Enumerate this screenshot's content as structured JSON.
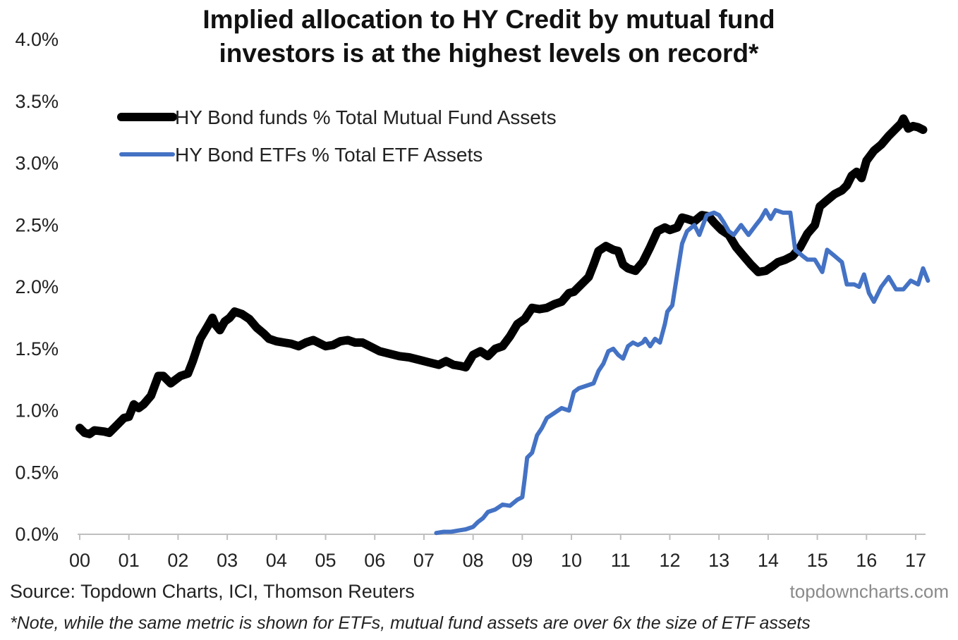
{
  "chart_data": {
    "type": "line",
    "title": [
      "Implied allocation to HY Credit by mutual fund",
      "investors is at the highest levels on record*"
    ],
    "xlabel": "",
    "ylabel": "",
    "xlim": [
      2000.0,
      2017.3
    ],
    "ylim": [
      0,
      4.0
    ],
    "grid": false,
    "legend_position": "top-left",
    "x_ticks": [
      {
        "value": 2000,
        "label": "00"
      },
      {
        "value": 2001,
        "label": "01"
      },
      {
        "value": 2002,
        "label": "02"
      },
      {
        "value": 2003,
        "label": "03"
      },
      {
        "value": 2004,
        "label": "04"
      },
      {
        "value": 2005,
        "label": "05"
      },
      {
        "value": 2006,
        "label": "06"
      },
      {
        "value": 2007,
        "label": "07"
      },
      {
        "value": 2008,
        "label": "08"
      },
      {
        "value": 2009,
        "label": "09"
      },
      {
        "value": 2010,
        "label": "10"
      },
      {
        "value": 2011,
        "label": "11"
      },
      {
        "value": 2012,
        "label": "12"
      },
      {
        "value": 2013,
        "label": "13"
      },
      {
        "value": 2014,
        "label": "14"
      },
      {
        "value": 2015,
        "label": "15"
      },
      {
        "value": 2016,
        "label": "16"
      },
      {
        "value": 2017,
        "label": "17"
      }
    ],
    "y_ticks": [
      {
        "value": 0.0,
        "label": "0.0%"
      },
      {
        "value": 0.5,
        "label": "0.5%"
      },
      {
        "value": 1.0,
        "label": "1.0%"
      },
      {
        "value": 1.5,
        "label": "1.5%"
      },
      {
        "value": 2.0,
        "label": "2.0%"
      },
      {
        "value": 2.5,
        "label": "2.5%"
      },
      {
        "value": 3.0,
        "label": "3.0%"
      },
      {
        "value": 3.5,
        "label": "3.5%"
      },
      {
        "value": 4.0,
        "label": "4.0%"
      }
    ],
    "series": [
      {
        "name": "HY Bond funds % Total Mutual Fund Assets",
        "color": "#000000",
        "x": [
          2000.0,
          2000.1,
          2000.2,
          2000.3,
          2000.5,
          2000.6,
          2000.75,
          2000.9,
          2001.0,
          2001.1,
          2001.2,
          2001.3,
          2001.45,
          2001.6,
          2001.7,
          2001.85,
          2001.95,
          2002.05,
          2002.2,
          2002.3,
          2002.45,
          2002.6,
          2002.7,
          2002.75,
          2002.85,
          2002.95,
          2003.05,
          2003.15,
          2003.3,
          2003.45,
          2003.6,
          2003.75,
          2003.85,
          2004.0,
          2004.15,
          2004.3,
          2004.45,
          2004.6,
          2004.75,
          2004.9,
          2005.0,
          2005.15,
          2005.3,
          2005.45,
          2005.6,
          2005.75,
          2005.9,
          2006.1,
          2006.3,
          2006.5,
          2006.7,
          2006.9,
          2007.1,
          2007.3,
          2007.45,
          2007.6,
          2007.75,
          2007.85,
          2008.0,
          2008.15,
          2008.3,
          2008.45,
          2008.6,
          2008.75,
          2008.9,
          2009.05,
          2009.2,
          2009.35,
          2009.5,
          2009.65,
          2009.8,
          2009.95,
          2010.05,
          2010.2,
          2010.35,
          2010.45,
          2010.55,
          2010.7,
          2010.85,
          2010.95,
          2011.05,
          2011.15,
          2011.3,
          2011.45,
          2011.6,
          2011.75,
          2011.9,
          2012.0,
          2012.15,
          2012.25,
          2012.35,
          2012.5,
          2012.65,
          2012.8,
          2012.9,
          2013.05,
          2013.2,
          2013.35,
          2013.5,
          2013.65,
          2013.8,
          2013.95,
          2014.1,
          2014.2,
          2014.35,
          2014.5,
          2014.65,
          2014.8,
          2014.95,
          2015.05,
          2015.2,
          2015.35,
          2015.5,
          2015.6,
          2015.7,
          2015.8,
          2015.9,
          2016.0,
          2016.15,
          2016.3,
          2016.45,
          2016.6,
          2016.7,
          2016.75,
          2016.85,
          2016.95,
          2017.05,
          2017.15
        ],
        "y": [
          0.86,
          0.82,
          0.81,
          0.84,
          0.83,
          0.82,
          0.88,
          0.94,
          0.95,
          1.05,
          1.02,
          1.05,
          1.12,
          1.28,
          1.28,
          1.22,
          1.25,
          1.28,
          1.3,
          1.4,
          1.58,
          1.68,
          1.75,
          1.7,
          1.65,
          1.72,
          1.75,
          1.8,
          1.78,
          1.74,
          1.67,
          1.62,
          1.58,
          1.56,
          1.55,
          1.54,
          1.52,
          1.55,
          1.57,
          1.54,
          1.52,
          1.53,
          1.56,
          1.57,
          1.55,
          1.55,
          1.52,
          1.48,
          1.46,
          1.44,
          1.43,
          1.41,
          1.39,
          1.37,
          1.4,
          1.37,
          1.36,
          1.35,
          1.45,
          1.48,
          1.44,
          1.5,
          1.52,
          1.6,
          1.7,
          1.74,
          1.83,
          1.82,
          1.83,
          1.86,
          1.88,
          1.95,
          1.96,
          2.02,
          2.08,
          2.18,
          2.29,
          2.33,
          2.3,
          2.29,
          2.18,
          2.15,
          2.13,
          2.2,
          2.32,
          2.45,
          2.48,
          2.46,
          2.48,
          2.56,
          2.55,
          2.53,
          2.58,
          2.57,
          2.52,
          2.46,
          2.42,
          2.32,
          2.25,
          2.18,
          2.12,
          2.13,
          2.17,
          2.2,
          2.22,
          2.25,
          2.32,
          2.43,
          2.5,
          2.65,
          2.7,
          2.75,
          2.78,
          2.82,
          2.9,
          2.93,
          2.88,
          3.02,
          3.1,
          3.15,
          3.22,
          3.28,
          3.32,
          3.36,
          3.28,
          3.3,
          3.29,
          3.27
        ]
      },
      {
        "name": "HY Bond ETFs % Total ETF Assets",
        "color": "#4472C4",
        "x": [
          2007.25,
          2007.4,
          2007.55,
          2007.7,
          2007.85,
          2008.0,
          2008.1,
          2008.2,
          2008.3,
          2008.45,
          2008.6,
          2008.75,
          2008.9,
          2009.0,
          2009.05,
          2009.1,
          2009.2,
          2009.3,
          2009.4,
          2009.5,
          2009.65,
          2009.8,
          2009.95,
          2010.05,
          2010.15,
          2010.3,
          2010.45,
          2010.55,
          2010.65,
          2010.75,
          2010.85,
          2010.95,
          2011.05,
          2011.15,
          2011.25,
          2011.35,
          2011.45,
          2011.5,
          2011.6,
          2011.7,
          2011.8,
          2011.9,
          2011.95,
          2012.05,
          2012.15,
          2012.25,
          2012.35,
          2012.5,
          2012.6,
          2012.75,
          2012.9,
          2013.0,
          2013.1,
          2013.2,
          2013.3,
          2013.45,
          2013.6,
          2013.75,
          2013.85,
          2013.95,
          2014.05,
          2014.15,
          2014.3,
          2014.45,
          2014.55,
          2014.7,
          2014.8,
          2014.95,
          2015.1,
          2015.2,
          2015.35,
          2015.5,
          2015.6,
          2015.75,
          2015.85,
          2015.95,
          2016.05,
          2016.15,
          2016.3,
          2016.45,
          2016.6,
          2016.75,
          2016.9,
          2017.05,
          2017.15,
          2017.25
        ],
        "y": [
          0.01,
          0.02,
          0.02,
          0.03,
          0.04,
          0.06,
          0.1,
          0.13,
          0.18,
          0.2,
          0.24,
          0.23,
          0.28,
          0.3,
          0.45,
          0.62,
          0.66,
          0.8,
          0.86,
          0.94,
          0.98,
          1.02,
          1.0,
          1.15,
          1.18,
          1.2,
          1.22,
          1.32,
          1.38,
          1.48,
          1.5,
          1.45,
          1.42,
          1.52,
          1.55,
          1.53,
          1.55,
          1.58,
          1.52,
          1.58,
          1.55,
          1.7,
          1.8,
          1.85,
          2.1,
          2.35,
          2.45,
          2.5,
          2.42,
          2.58,
          2.6,
          2.58,
          2.52,
          2.45,
          2.42,
          2.5,
          2.42,
          2.5,
          2.55,
          2.62,
          2.55,
          2.62,
          2.6,
          2.6,
          2.3,
          2.25,
          2.22,
          2.22,
          2.12,
          2.3,
          2.25,
          2.2,
          2.02,
          2.02,
          2.0,
          2.1,
          1.95,
          1.88,
          2.0,
          2.08,
          1.98,
          1.98,
          2.05,
          2.02,
          2.15,
          2.05
        ]
      }
    ]
  },
  "source_note": "Source: Topdown Charts, ICI, Thomson Reuters",
  "brand": "topdowncharts.com",
  "footnote": "*Note, while the same metric is shown for ETFs, mutual fund assets are over 6x the size of ETF assets"
}
